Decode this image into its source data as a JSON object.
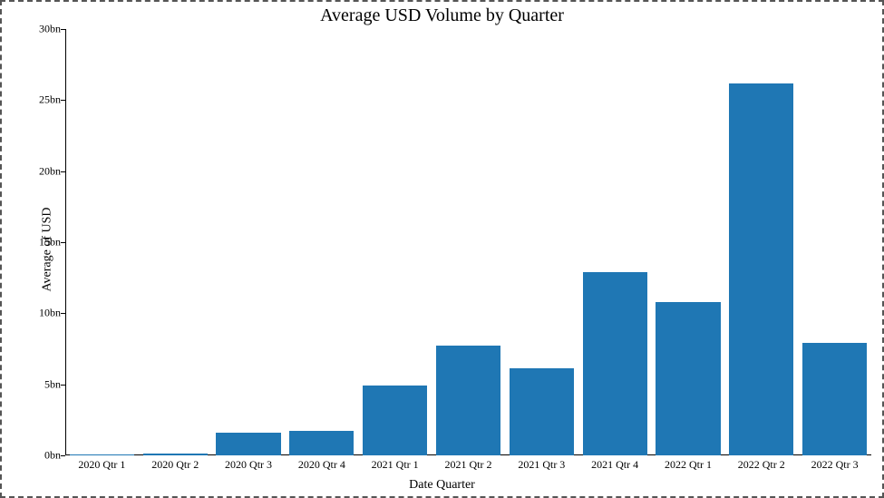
{
  "chart": {
    "type": "bar",
    "title": "Average USD Volume by Quarter",
    "title_fontsize": 20,
    "title_color": "#000000",
    "xlabel": "Date Quarter",
    "ylabel": "Average of USD",
    "label_fontsize": 14,
    "label_color": "#000000",
    "background_color": "#ffffff",
    "border_color": "#555555",
    "border_style": "dashed",
    "categories": [
      "2020 Qtr 1",
      "2020 Qtr 2",
      "2020 Qtr 3",
      "2020 Qtr 4",
      "2021 Qtr 1",
      "2021 Qtr 2",
      "2021 Qtr 3",
      "2021 Qtr 4",
      "2022 Qtr 1",
      "2022 Qtr 2",
      "2022 Qtr 3"
    ],
    "values": [
      0.08,
      0.12,
      1.6,
      1.7,
      4.9,
      7.7,
      6.1,
      12.9,
      10.8,
      26.2,
      7.9
    ],
    "value_unit": "bn",
    "bar_color": "#1f77b4",
    "ylim": [
      0,
      30
    ],
    "yticks": [
      0,
      5,
      10,
      15,
      20,
      25,
      30
    ],
    "ytick_labels": [
      "0bn",
      "5bn",
      "10bn",
      "15bn",
      "20bn",
      "25bn",
      "30bn"
    ],
    "tick_fontsize": 12,
    "tick_color": "#000000",
    "axis_line_color": "#000000",
    "bar_width_ratio": 0.88,
    "font_family": "Times New Roman"
  }
}
